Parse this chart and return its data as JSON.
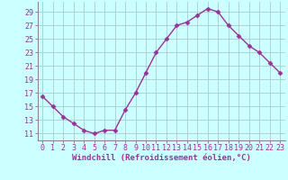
{
  "x": [
    0,
    1,
    2,
    3,
    4,
    5,
    6,
    7,
    8,
    9,
    10,
    11,
    12,
    13,
    14,
    15,
    16,
    17,
    18,
    19,
    20,
    21,
    22,
    23
  ],
  "y": [
    16.5,
    15.0,
    13.5,
    12.5,
    11.5,
    11.0,
    11.5,
    11.5,
    14.5,
    17.0,
    20.0,
    23.0,
    25.0,
    27.0,
    27.5,
    28.5,
    29.5,
    29.0,
    27.0,
    25.5,
    24.0,
    23.0,
    21.5,
    20.0
  ],
  "line_color": "#993399",
  "marker": "D",
  "markersize": 2.5,
  "linewidth": 1.0,
  "background_color": "#ccffff",
  "grid_color": "#aacccc",
  "xlabel": "Windchill (Refroidissement éolien,°C)",
  "xlabel_fontsize": 6.5,
  "ytick_labels": [
    "11",
    "13",
    "15",
    "17",
    "19",
    "21",
    "23",
    "25",
    "27",
    "29"
  ],
  "ytick_values": [
    11,
    13,
    15,
    17,
    19,
    21,
    23,
    25,
    27,
    29
  ],
  "ylim": [
    10.0,
    30.5
  ],
  "xlim": [
    -0.5,
    23.5
  ],
  "tick_fontsize": 6.0,
  "text_color": "#993399"
}
